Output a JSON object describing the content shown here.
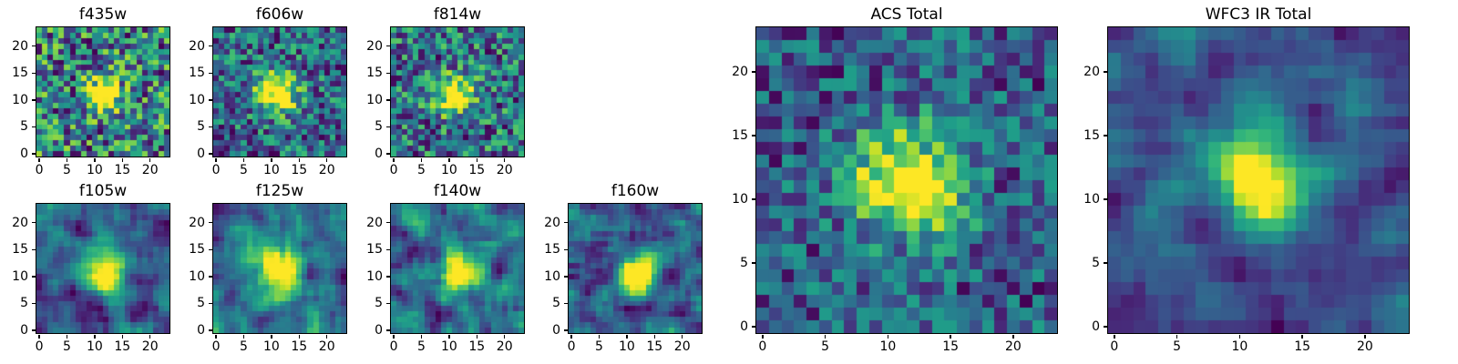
{
  "figure": {
    "background": "#ffffff",
    "axis_color": "#000000",
    "colormap": "viridis",
    "colormap_stops": [
      "#440154",
      "#482878",
      "#3e4989",
      "#31688e",
      "#26828e",
      "#1f9e89",
      "#35b779",
      "#6ece58",
      "#b5de2b",
      "#fde725"
    ]
  },
  "chart_data": {
    "type": "heatmap",
    "grid_size": 24,
    "tick_values": [
      0,
      5,
      10,
      15,
      20
    ],
    "xlim": [
      -0.5,
      23.5
    ],
    "ylim": [
      -0.5,
      23.5
    ],
    "legend": "none",
    "grid": "off",
    "panels": [
      {
        "id": "f435w",
        "title": "f435w",
        "instrument": "ACS",
        "seed": 43,
        "smooth": 0,
        "noise": 1,
        "clip": 0.72,
        "sources": [
          {
            "cx": 11.5,
            "cy": 11.0,
            "sigma": 2.2,
            "amp": 0.9
          }
        ]
      },
      {
        "id": "f606w",
        "title": "f606w",
        "instrument": "ACS",
        "seed": 66,
        "smooth": 0,
        "noise": 1,
        "clip": 0.7,
        "sources": [
          {
            "cx": 11.0,
            "cy": 11.5,
            "sigma": 2.6,
            "amp": 1.3
          }
        ]
      },
      {
        "id": "f814w",
        "title": "f814w",
        "instrument": "ACS",
        "seed": 81,
        "smooth": 0,
        "noise": 1,
        "clip": 0.72,
        "sources": [
          {
            "cx": 11.0,
            "cy": 11.0,
            "sigma": 2.3,
            "amp": 1.1
          }
        ]
      },
      {
        "id": "f105w",
        "title": "f105w",
        "instrument": "WFC3 IR",
        "seed": 105,
        "smooth": 1,
        "noise": 1,
        "clip": 0.78,
        "sources": [
          {
            "cx": 11.0,
            "cy": 12.0,
            "sigma": 3.0,
            "amp": 1.2
          },
          {
            "cx": 13.0,
            "cy": 9.0,
            "sigma": 2.0,
            "amp": 0.6
          }
        ]
      },
      {
        "id": "f125w",
        "title": "f125w",
        "instrument": "WFC3 IR",
        "seed": 125,
        "smooth": 1,
        "noise": 1,
        "clip": 0.78,
        "sources": [
          {
            "cx": 11.0,
            "cy": 11.0,
            "sigma": 2.8,
            "amp": 1.3
          }
        ]
      },
      {
        "id": "f140w",
        "title": "f140w",
        "instrument": "WFC3 IR",
        "seed": 140,
        "smooth": 1,
        "noise": 1,
        "clip": 0.78,
        "sources": [
          {
            "cx": 12.0,
            "cy": 11.0,
            "sigma": 2.6,
            "amp": 1.3
          }
        ]
      },
      {
        "id": "f160w",
        "title": "f160w",
        "instrument": "WFC3 IR",
        "seed": 160,
        "smooth": 1,
        "noise": 1,
        "clip": 0.75,
        "sources": [
          {
            "cx": 12.0,
            "cy": 10.5,
            "sigma": 2.2,
            "amp": 1.5
          }
        ]
      },
      {
        "id": "acs_total",
        "title": "ACS Total",
        "instrument": "ACS",
        "seed": 200,
        "smooth": 0,
        "noise": 1,
        "clip": 0.7,
        "sources": [
          {
            "cx": 11.0,
            "cy": 11.5,
            "sigma": 3.0,
            "amp": 1.3
          },
          {
            "cx": 14.0,
            "cy": 10.0,
            "sigma": 2.0,
            "amp": 0.6
          }
        ]
      },
      {
        "id": "wfc3_total",
        "title": "WFC3 IR Total",
        "instrument": "WFC3 IR",
        "seed": 300,
        "smooth": 1,
        "noise": 1,
        "clip": 0.8,
        "sources": [
          {
            "cx": 12.5,
            "cy": 11.0,
            "sigma": 2.6,
            "amp": 1.5
          },
          {
            "cx": 10.0,
            "cy": 13.0,
            "sigma": 2.0,
            "amp": 0.9
          }
        ]
      }
    ]
  }
}
